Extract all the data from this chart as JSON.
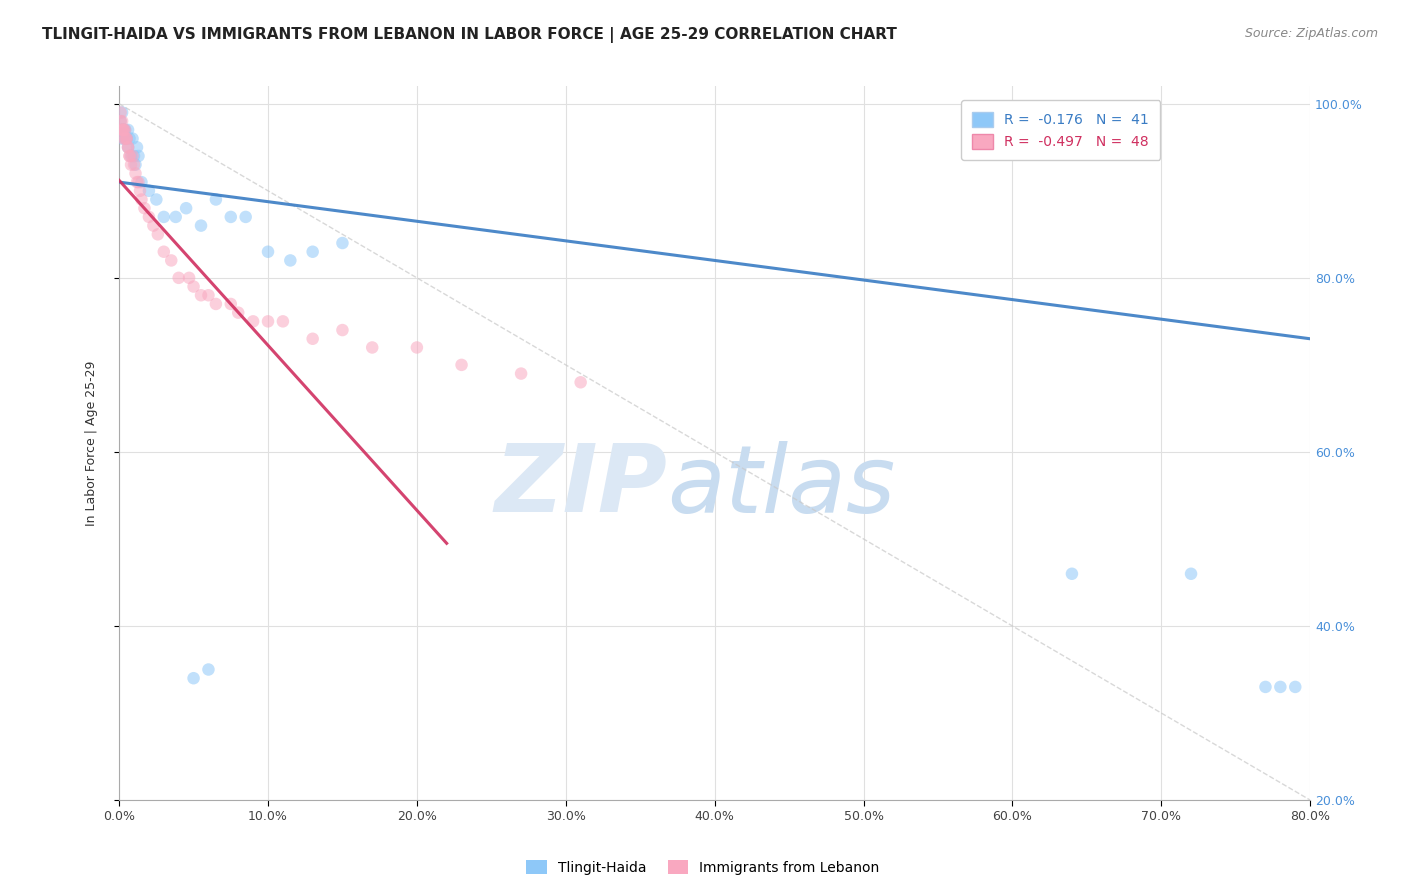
{
  "title": "TLINGIT-HAIDA VS IMMIGRANTS FROM LEBANON IN LABOR FORCE | AGE 25-29 CORRELATION CHART",
  "source": "Source: ZipAtlas.com",
  "ylabel": "In Labor Force | Age 25-29",
  "legend_labels": [
    "Tlingit-Haida",
    "Immigrants from Lebanon"
  ],
  "R_tlingit": -0.176,
  "N_tlingit": 41,
  "R_lebanon": -0.497,
  "N_lebanon": 48,
  "color_tlingit": "#8EC8F8",
  "color_lebanon": "#F9A8C0",
  "color_tlingit_line": "#3A7CC4",
  "color_lebanon_line": "#D03060",
  "xlim": [
    0.0,
    0.8
  ],
  "ylim": [
    0.2,
    1.02
  ],
  "xticks": [
    0.0,
    0.1,
    0.2,
    0.3,
    0.4,
    0.5,
    0.6,
    0.7,
    0.8
  ],
  "yticks": [
    0.2,
    0.4,
    0.6,
    0.8,
    1.0
  ],
  "ytick_labels": [
    "20.0%",
    "40.0%",
    "60.0%",
    "80.0%",
    "100.0%"
  ],
  "xtick_labels": [
    "0.0%",
    "10.0%",
    "20.0%",
    "30.0%",
    "40.0%",
    "50.0%",
    "60.0%",
    "70.0%",
    "80.0%"
  ],
  "tlingit_x": [
    0.001,
    0.001,
    0.002,
    0.002,
    0.002,
    0.003,
    0.003,
    0.004,
    0.004,
    0.005,
    0.005,
    0.006,
    0.006,
    0.007,
    0.008,
    0.009,
    0.01,
    0.011,
    0.012,
    0.013,
    0.015,
    0.02,
    0.025,
    0.03,
    0.038,
    0.045,
    0.055,
    0.065,
    0.075,
    0.085,
    0.1,
    0.115,
    0.13,
    0.15,
    0.64,
    0.72,
    0.77,
    0.78,
    0.79,
    0.05,
    0.06
  ],
  "tlingit_y": [
    0.98,
    0.97,
    0.99,
    0.97,
    0.96,
    0.97,
    0.97,
    0.97,
    0.96,
    0.96,
    0.96,
    0.95,
    0.97,
    0.96,
    0.94,
    0.96,
    0.94,
    0.93,
    0.95,
    0.94,
    0.91,
    0.9,
    0.89,
    0.87,
    0.87,
    0.88,
    0.86,
    0.89,
    0.87,
    0.87,
    0.83,
    0.82,
    0.83,
    0.84,
    0.46,
    0.46,
    0.33,
    0.33,
    0.33,
    0.34,
    0.35
  ],
  "lebanon_x": [
    0.001,
    0.001,
    0.002,
    0.002,
    0.002,
    0.003,
    0.003,
    0.003,
    0.004,
    0.004,
    0.005,
    0.005,
    0.006,
    0.006,
    0.007,
    0.007,
    0.008,
    0.009,
    0.01,
    0.011,
    0.012,
    0.013,
    0.014,
    0.015,
    0.017,
    0.02,
    0.023,
    0.026,
    0.03,
    0.035,
    0.04,
    0.047,
    0.055,
    0.065,
    0.075,
    0.09,
    0.11,
    0.13,
    0.15,
    0.17,
    0.2,
    0.23,
    0.27,
    0.31,
    0.05,
    0.06,
    0.08,
    0.1
  ],
  "lebanon_y": [
    0.99,
    0.98,
    0.98,
    0.97,
    0.97,
    0.97,
    0.97,
    0.96,
    0.97,
    0.96,
    0.96,
    0.96,
    0.95,
    0.95,
    0.94,
    0.94,
    0.93,
    0.94,
    0.93,
    0.92,
    0.91,
    0.91,
    0.9,
    0.89,
    0.88,
    0.87,
    0.86,
    0.85,
    0.83,
    0.82,
    0.8,
    0.8,
    0.78,
    0.77,
    0.77,
    0.75,
    0.75,
    0.73,
    0.74,
    0.72,
    0.72,
    0.7,
    0.69,
    0.68,
    0.79,
    0.78,
    0.76,
    0.75
  ],
  "title_fontsize": 11,
  "source_fontsize": 9,
  "axis_label_fontsize": 9,
  "tick_fontsize": 9,
  "legend_fontsize": 10,
  "marker_size": 9,
  "marker_alpha": 0.55,
  "line_alpha": 0.9,
  "grid_color": "#E0E0E0",
  "watermark_color": "#DCE8F5",
  "background_color": "#FFFFFF",
  "right_ytick_color": "#4A90D9"
}
